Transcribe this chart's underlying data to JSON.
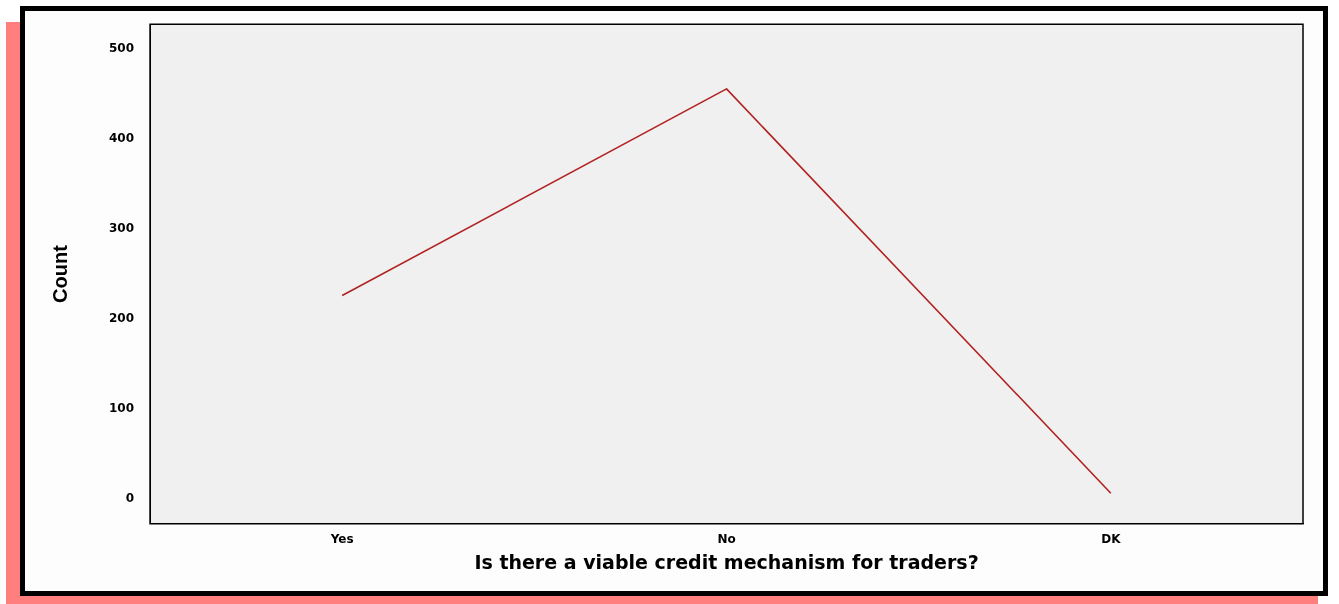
{
  "chart_data": {
    "type": "line",
    "xlabel": "Is there a viable credit mechanism for traders?",
    "ylabel": "Count",
    "categories": [
      "Yes",
      "No",
      "DK"
    ],
    "values": [
      226,
      456,
      6
    ],
    "color": "#b22222",
    "ylim": [
      -28,
      528
    ],
    "yticks": [
      0,
      100,
      200,
      300,
      400,
      500
    ],
    "grid": false,
    "legend": false,
    "marker": "none"
  }
}
